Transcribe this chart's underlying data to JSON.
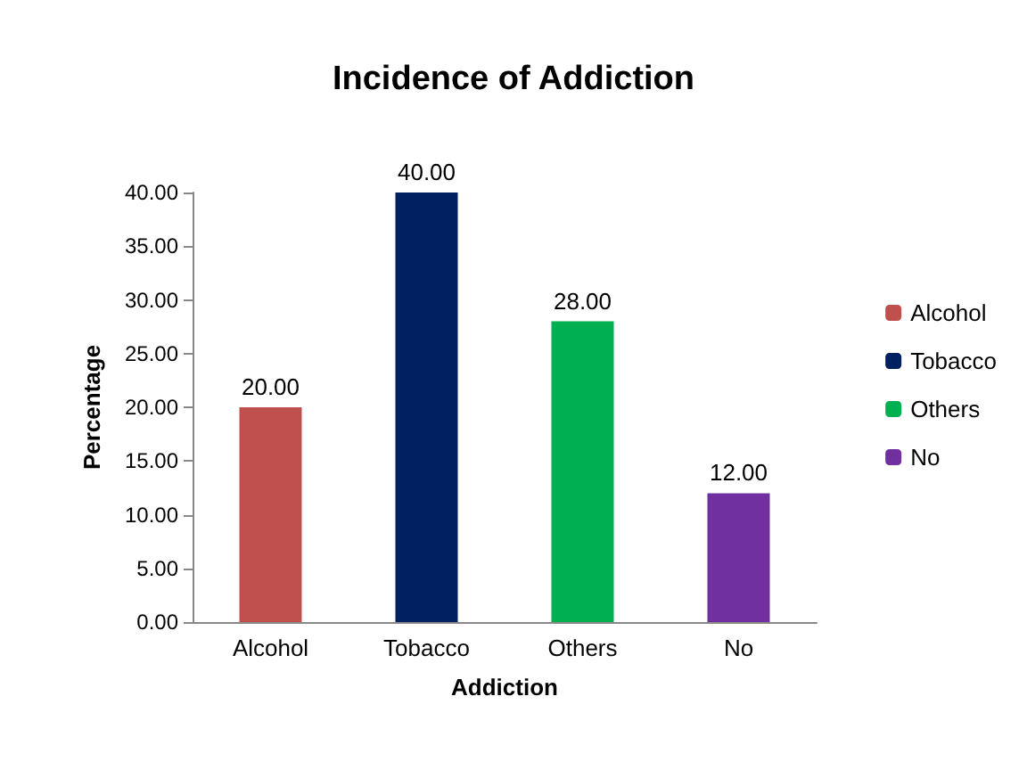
{
  "chart_data": {
    "type": "bar",
    "title": "Incidence of Addiction",
    "xlabel": "Addiction",
    "ylabel": "Percentage",
    "categories": [
      "Alcohol",
      "Tobacco",
      "Others",
      "No"
    ],
    "series": [
      {
        "name": "Alcohol",
        "color": "#c0504d",
        "values": [
          20,
          null,
          null,
          null
        ],
        "value_labels": [
          "20.00",
          null,
          null,
          null
        ]
      },
      {
        "name": "Tobacco",
        "color": "#002060",
        "values": [
          null,
          40,
          null,
          null
        ],
        "value_labels": [
          null,
          "40.00",
          null,
          null
        ]
      },
      {
        "name": "Others",
        "color": "#00b050",
        "values": [
          null,
          null,
          28,
          null
        ],
        "value_labels": [
          null,
          null,
          "28.00",
          null
        ]
      },
      {
        "name": "No",
        "color": "#7030a0",
        "values": [
          null,
          null,
          null,
          12
        ],
        "value_labels": [
          null,
          null,
          null,
          "12.00"
        ]
      }
    ],
    "ylim": [
      0,
      40
    ],
    "yticks": [
      {
        "value": 0,
        "label": "0.00"
      },
      {
        "value": 5,
        "label": "5.00"
      },
      {
        "value": 10,
        "label": "10.00"
      },
      {
        "value": 15,
        "label": "15.00"
      },
      {
        "value": 20,
        "label": "20.00"
      },
      {
        "value": 25,
        "label": "25.00"
      },
      {
        "value": 30,
        "label": "30.00"
      },
      {
        "value": 35,
        "label": "35.00"
      },
      {
        "value": 40,
        "label": "40.00"
      }
    ],
    "legend": "right"
  }
}
